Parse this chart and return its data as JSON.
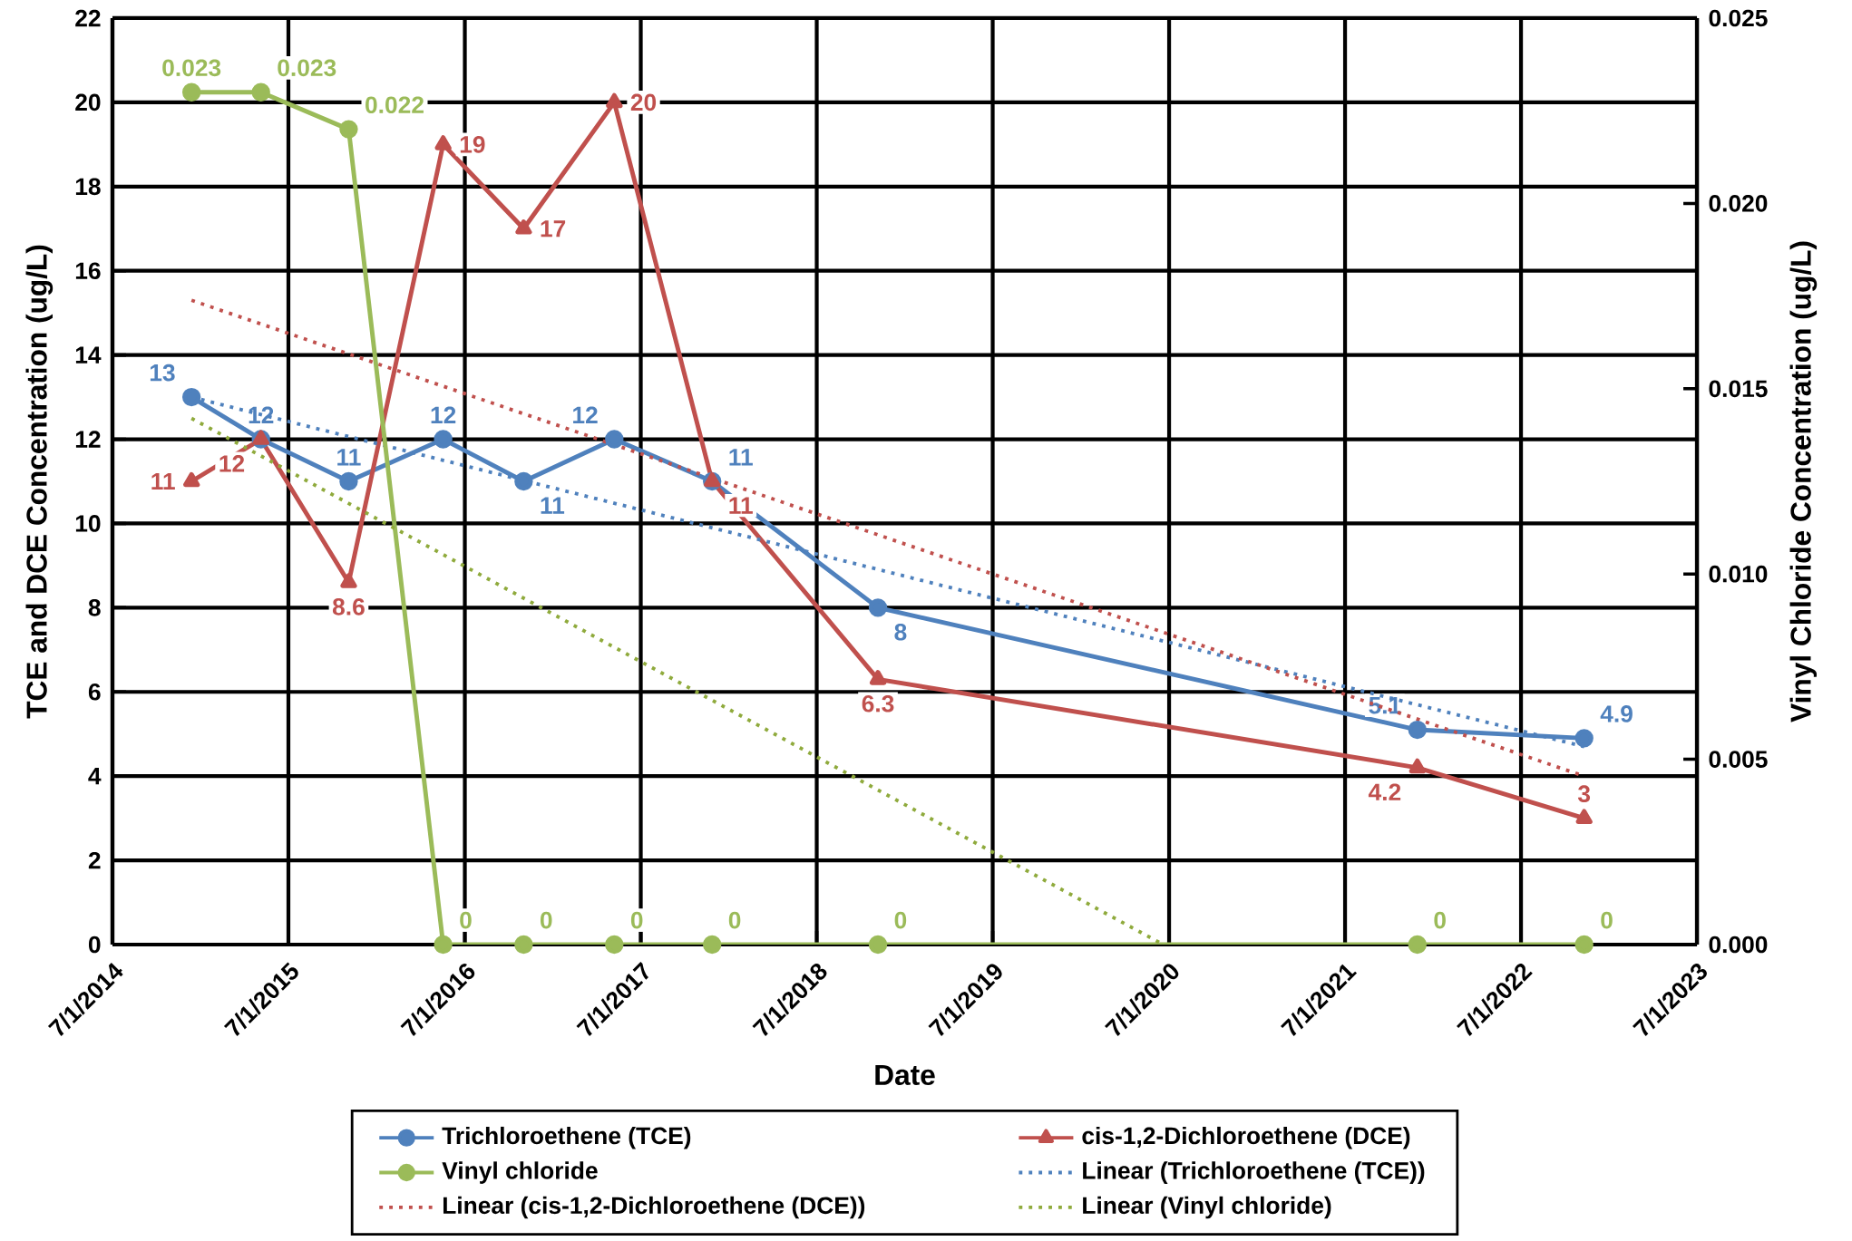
{
  "chart_data": {
    "type": "line",
    "xlabel": "Date",
    "ylabel": "TCE and DCE Concentration (ug/L)",
    "y2label": "Vinyl Chloride Concentration (ug/L)",
    "xlim": [
      "2014-07-01",
      "2023-07-01"
    ],
    "xticks": [
      {
        "value": "2014-07-01",
        "label": "7/1/2014"
      },
      {
        "value": "2015-07-01",
        "label": "7/1/2015"
      },
      {
        "value": "2016-07-01",
        "label": "7/1/2016"
      },
      {
        "value": "2017-07-01",
        "label": "7/1/2017"
      },
      {
        "value": "2018-07-01",
        "label": "7/1/2018"
      },
      {
        "value": "2019-07-01",
        "label": "7/1/2019"
      },
      {
        "value": "2020-07-01",
        "label": "7/1/2020"
      },
      {
        "value": "2021-07-01",
        "label": "7/1/2021"
      },
      {
        "value": "2022-07-01",
        "label": "7/1/2022"
      },
      {
        "value": "2023-07-01",
        "label": "7/1/2023"
      }
    ],
    "ylim": [
      0,
      22
    ],
    "yticks": [
      0,
      2,
      4,
      6,
      8,
      10,
      12,
      14,
      16,
      18,
      20,
      22
    ],
    "y2lim": [
      0,
      0.025
    ],
    "y2ticks": [
      {
        "value": 0,
        "label": "0.000"
      },
      {
        "value": 0.005,
        "label": "0.005"
      },
      {
        "value": 0.01,
        "label": "0.010"
      },
      {
        "value": 0.015,
        "label": "0.015"
      },
      {
        "value": 0.02,
        "label": "0.020"
      },
      {
        "value": 0.025,
        "label": "0.025"
      }
    ],
    "grid": true,
    "legend": "bottom",
    "x": [
      "2014-12-12",
      "2015-05-05",
      "2015-11-03",
      "2016-05-17",
      "2016-10-31",
      "2017-05-07",
      "2017-11-26",
      "2018-11-05",
      "2021-11-28",
      "2022-11-09"
    ],
    "series": [
      {
        "name": "Trichloroethene (TCE)",
        "color": "#4f81bd",
        "marker": "circle",
        "line_style": "solid",
        "values": [
          13,
          12,
          11,
          12,
          11,
          12,
          11,
          8,
          5.1,
          4.9
        ],
        "value_labels": [
          "13",
          "12",
          "11",
          "12",
          "11",
          "12",
          "11",
          "8",
          "5.1",
          "4.9"
        ]
      },
      {
        "name": "cis-1,2-Dichloroethene (DCE)",
        "color": "#c0504d",
        "marker": "triangle",
        "line_style": "solid",
        "values": [
          11,
          12,
          8.6,
          19,
          17,
          20,
          11,
          6.3,
          4.2,
          3
        ],
        "value_labels": [
          "11",
          "12",
          "8.6",
          "19",
          "17",
          "20",
          "11",
          "6.3",
          "4.2",
          "3"
        ]
      },
      {
        "name": "Vinyl chloride",
        "color": "#9bbb59",
        "marker": "circle",
        "line_style": "solid",
        "axis": "y2",
        "values": [
          0.023,
          0.023,
          0.022,
          0,
          0,
          0,
          0,
          0,
          0,
          0
        ],
        "value_labels": [
          "0.023",
          "0.023",
          "0.022",
          "0",
          "0",
          "0",
          "0",
          "0",
          "0",
          "0"
        ]
      },
      {
        "name": "Linear (Trichloroethene (TCE))",
        "color": "#4f81bd",
        "marker": "none",
        "line_style": "dotted",
        "x": [
          "2014-12-12",
          "2022-11-09"
        ],
        "values": [
          13.0,
          4.7
        ]
      },
      {
        "name": "Linear (cis-1,2-Dichloroethene (DCE))",
        "color": "#c0504d",
        "marker": "none",
        "line_style": "dotted",
        "x": [
          "2014-12-12",
          "2022-11-09"
        ],
        "values": [
          15.3,
          4.0
        ]
      },
      {
        "name": "Linear (Vinyl chloride)",
        "color": "#8faa3c",
        "marker": "none",
        "line_style": "dotted",
        "axis": "y2",
        "x": [
          "2014-12-12",
          "2020-06-19"
        ],
        "values": [
          0.0142,
          0
        ]
      }
    ]
  }
}
